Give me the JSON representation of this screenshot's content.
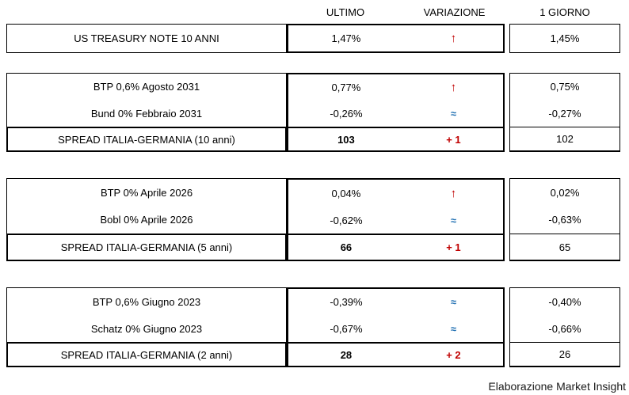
{
  "columns": {
    "ultimo": "ULTIMO",
    "variazione": "VARIAZIONE",
    "giorno": "1 GIORNO"
  },
  "colors": {
    "up_red": "#C00000",
    "steady_blue": "#2271B3",
    "border": "#000000",
    "background": "#FFFFFF"
  },
  "variation_icons": {
    "up": "↑",
    "steady": "≈"
  },
  "blocks": [
    {
      "rows": [
        {
          "label": "US TREASURY NOTE 10 ANNI",
          "ultimo": "1,47%",
          "var_icon": "↑",
          "giorno": "1,45%"
        }
      ]
    },
    {
      "rows": [
        {
          "label": "BTP 0,6% Agosto 2031",
          "ultimo": "0,77%",
          "var_icon": "↑",
          "giorno": "0,75%"
        },
        {
          "label": "Bund 0% Febbraio 2031",
          "ultimo": "-0,26%",
          "var_icon": "≈",
          "giorno": "-0,27%"
        }
      ],
      "spread": {
        "label": "SPREAD ITALIA-GERMANIA (10 anni)",
        "ultimo": "103",
        "variazione": "+ 1",
        "giorno": "102"
      }
    },
    {
      "rows": [
        {
          "label": "BTP 0% Aprile 2026",
          "ultimo": "0,04%",
          "var_icon": "↑",
          "giorno": "0,02%"
        },
        {
          "label": "Bobl 0% Aprile 2026",
          "ultimo": "-0,62%",
          "var_icon": "≈",
          "giorno": "-0,63%"
        }
      ],
      "spread": {
        "label": "SPREAD ITALIA-GERMANIA (5 anni)",
        "ultimo": "66",
        "variazione": "+ 1",
        "giorno": "65"
      }
    },
    {
      "rows": [
        {
          "label": "BTP 0,6% Giugno 2023",
          "ultimo": "-0,39%",
          "var_icon": "≈",
          "giorno": "-0,40%"
        },
        {
          "label": "Schatz 0% Giugno 2023",
          "ultimo": "-0,67%",
          "var_icon": "≈",
          "giorno": "-0,66%"
        }
      ],
      "spread": {
        "label": "SPREAD ITALIA-GERMANIA (2 anni)",
        "ultimo": "28",
        "variazione": "+ 2",
        "giorno": "26"
      }
    }
  ],
  "footer": "Elaborazione Market Insight"
}
